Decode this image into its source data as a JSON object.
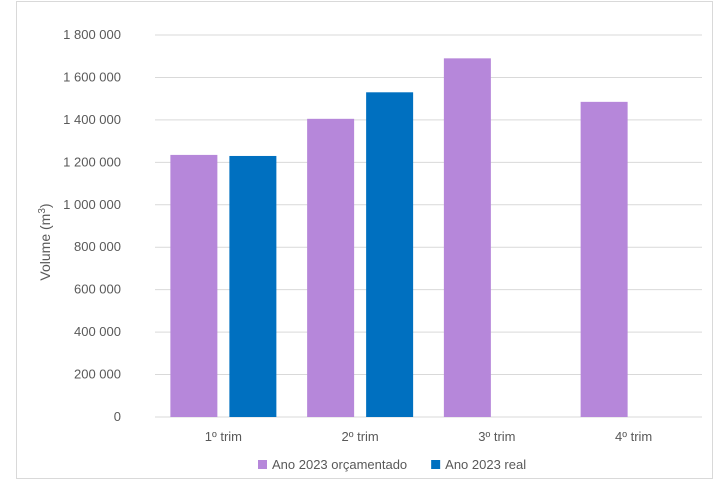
{
  "chart_data": {
    "type": "bar",
    "categories": [
      "1º trim",
      "2º trim",
      "3º trim",
      "4º trim"
    ],
    "series": [
      {
        "name": "Ano 2023 orçamentado",
        "color": "#B687DA",
        "values": [
          1235000,
          1405000,
          1690000,
          1485000
        ]
      },
      {
        "name": "Ano 2023 real",
        "color": "#0070C0",
        "values": [
          1230000,
          1530000,
          null,
          null
        ]
      }
    ],
    "ylabel": "Volume (m",
    "ylabel_sup": "3",
    "ylabel_close": ")",
    "ylim": [
      0,
      1800000
    ],
    "yticks": [
      0,
      200000,
      400000,
      600000,
      800000,
      1000000,
      1200000,
      1400000,
      1600000,
      1800000
    ],
    "ytick_labels": [
      "0",
      "200 000",
      "400 000",
      "600 000",
      "800 000",
      "1 000 000",
      "1 200 000",
      "1 400 000",
      "1 600 000",
      "1 800 000"
    ],
    "grid": true,
    "legend_position": "bottom",
    "gridline_color": "#D9D9D9"
  }
}
